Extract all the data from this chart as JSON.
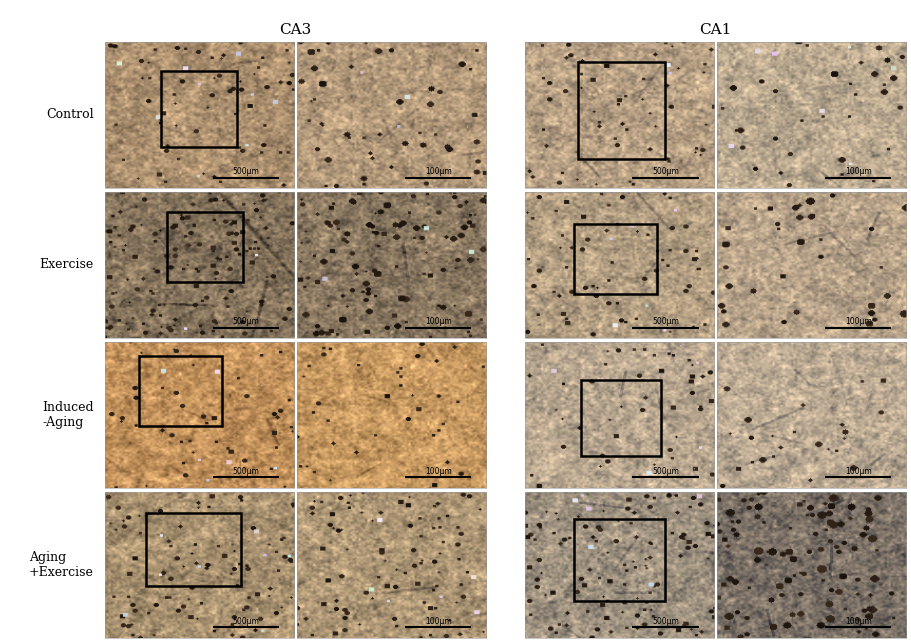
{
  "title_ca3": "CA3",
  "title_ca1": "CA1",
  "row_labels": [
    "Control",
    "Exercise",
    "Induced\n-Aging",
    "Aging\n+Exercise"
  ],
  "bg_color": "#ffffff",
  "fig_width": 9.11,
  "fig_height": 6.44,
  "header_fontsize": 11,
  "row_label_fontsize": 9,
  "scale_fontsize": 5.5,
  "cell_specs": [
    [
      {
        "base_r": 0.68,
        "base_g": 0.57,
        "base_b": 0.44,
        "cell_dark": 0.1,
        "cell_size": 2.0,
        "stripe": false,
        "blue_spots": true
      },
      {
        "base_r": 0.7,
        "base_g": 0.6,
        "base_b": 0.48,
        "cell_dark": 0.12,
        "cell_size": 2.5,
        "stripe": false,
        "blue_spots": true
      },
      {
        "base_r": 0.72,
        "base_g": 0.63,
        "base_b": 0.52,
        "cell_dark": 0.09,
        "cell_size": 2.0,
        "stripe": false,
        "blue_spots": true
      },
      {
        "base_r": 0.74,
        "base_g": 0.67,
        "base_b": 0.57,
        "cell_dark": 0.08,
        "cell_size": 2.5,
        "stripe": false,
        "blue_spots": true
      }
    ],
    [
      {
        "base_r": 0.52,
        "base_g": 0.45,
        "base_b": 0.36,
        "cell_dark": 0.22,
        "cell_size": 2.0,
        "stripe": true,
        "blue_spots": true
      },
      {
        "base_r": 0.54,
        "base_g": 0.47,
        "base_b": 0.38,
        "cell_dark": 0.28,
        "cell_size": 2.5,
        "stripe": false,
        "blue_spots": true
      },
      {
        "base_r": 0.7,
        "base_g": 0.62,
        "base_b": 0.51,
        "cell_dark": 0.1,
        "cell_size": 2.0,
        "stripe": false,
        "blue_spots": true
      },
      {
        "base_r": 0.72,
        "base_g": 0.64,
        "base_b": 0.54,
        "cell_dark": 0.12,
        "cell_size": 3.0,
        "stripe": false,
        "blue_spots": false
      }
    ],
    [
      {
        "base_r": 0.76,
        "base_g": 0.57,
        "base_b": 0.36,
        "cell_dark": 0.07,
        "cell_size": 2.0,
        "stripe": false,
        "blue_spots": true
      },
      {
        "base_r": 0.78,
        "base_g": 0.6,
        "base_b": 0.38,
        "cell_dark": 0.06,
        "cell_size": 2.0,
        "stripe": false,
        "blue_spots": true
      },
      {
        "base_r": 0.72,
        "base_g": 0.65,
        "base_b": 0.56,
        "cell_dark": 0.07,
        "cell_size": 2.0,
        "stripe": false,
        "blue_spots": true
      },
      {
        "base_r": 0.74,
        "base_g": 0.67,
        "base_b": 0.58,
        "cell_dark": 0.06,
        "cell_size": 2.5,
        "stripe": false,
        "blue_spots": false
      }
    ],
    [
      {
        "base_r": 0.66,
        "base_g": 0.57,
        "base_b": 0.44,
        "cell_dark": 0.14,
        "cell_size": 2.0,
        "stripe": false,
        "blue_spots": true
      },
      {
        "base_r": 0.68,
        "base_g": 0.59,
        "base_b": 0.46,
        "cell_dark": 0.14,
        "cell_size": 2.0,
        "stripe": false,
        "blue_spots": true
      },
      {
        "base_r": 0.62,
        "base_g": 0.57,
        "base_b": 0.5,
        "cell_dark": 0.18,
        "cell_size": 2.0,
        "stripe": false,
        "blue_spots": true
      },
      {
        "base_r": 0.48,
        "base_g": 0.44,
        "base_b": 0.4,
        "cell_dark": 0.38,
        "cell_size": 3.0,
        "stripe": false,
        "blue_spots": false
      }
    ]
  ],
  "box_positions": [
    [
      [
        0.3,
        0.28,
        0.4,
        0.52
      ],
      null,
      [
        0.28,
        0.2,
        0.46,
        0.66
      ],
      null
    ],
    [
      [
        0.33,
        0.38,
        0.4,
        0.48
      ],
      null,
      [
        0.26,
        0.3,
        0.44,
        0.48
      ],
      null
    ],
    [
      [
        0.18,
        0.42,
        0.44,
        0.48
      ],
      null,
      [
        0.3,
        0.22,
        0.42,
        0.52
      ],
      null
    ],
    [
      [
        0.22,
        0.35,
        0.5,
        0.5
      ],
      null,
      [
        0.26,
        0.25,
        0.48,
        0.56
      ],
      null
    ]
  ],
  "scale_texts": [
    [
      "500μm",
      "100μm",
      "500μm",
      "100μm"
    ],
    [
      "500μm",
      "100μm",
      "500μm",
      "100μm"
    ],
    [
      "500μm",
      "100μm",
      "500μm",
      "100μm"
    ],
    [
      "500μm",
      "100μm",
      "500μm",
      "100μm"
    ]
  ]
}
